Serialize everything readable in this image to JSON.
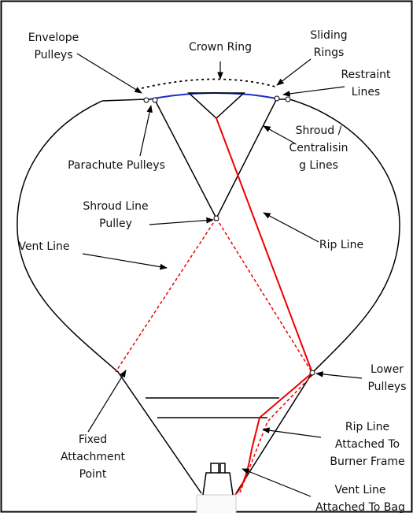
{
  "labels": [
    {
      "lines": [
        "Envelope",
        "Pulleys"
      ]
    },
    {
      "lines": [
        "Crown Ring"
      ]
    },
    {
      "lines": [
        "Sliding",
        "Rings"
      ]
    },
    {
      "lines": [
        "Restraint",
        "Lines"
      ]
    },
    {
      "lines": [
        "Parachute Pulleys"
      ]
    },
    {
      "lines": [
        "Shroud /",
        "Centralisin",
        "g Lines"
      ]
    },
    {
      "lines": [
        "Shroud Line",
        "Pulley"
      ]
    },
    {
      "lines": [
        "Rip Line"
      ]
    },
    {
      "lines": [
        "Vent Line"
      ]
    },
    {
      "lines": [
        "Lower",
        "Pulleys"
      ]
    },
    {
      "lines": [
        "Fixed",
        "Attachment",
        "Point"
      ]
    },
    {
      "lines": [
        "Rip Line",
        "Attached To",
        "Burner Frame"
      ]
    },
    {
      "lines": [
        "Vent Line",
        "Attached To Bag"
      ]
    }
  ]
}
